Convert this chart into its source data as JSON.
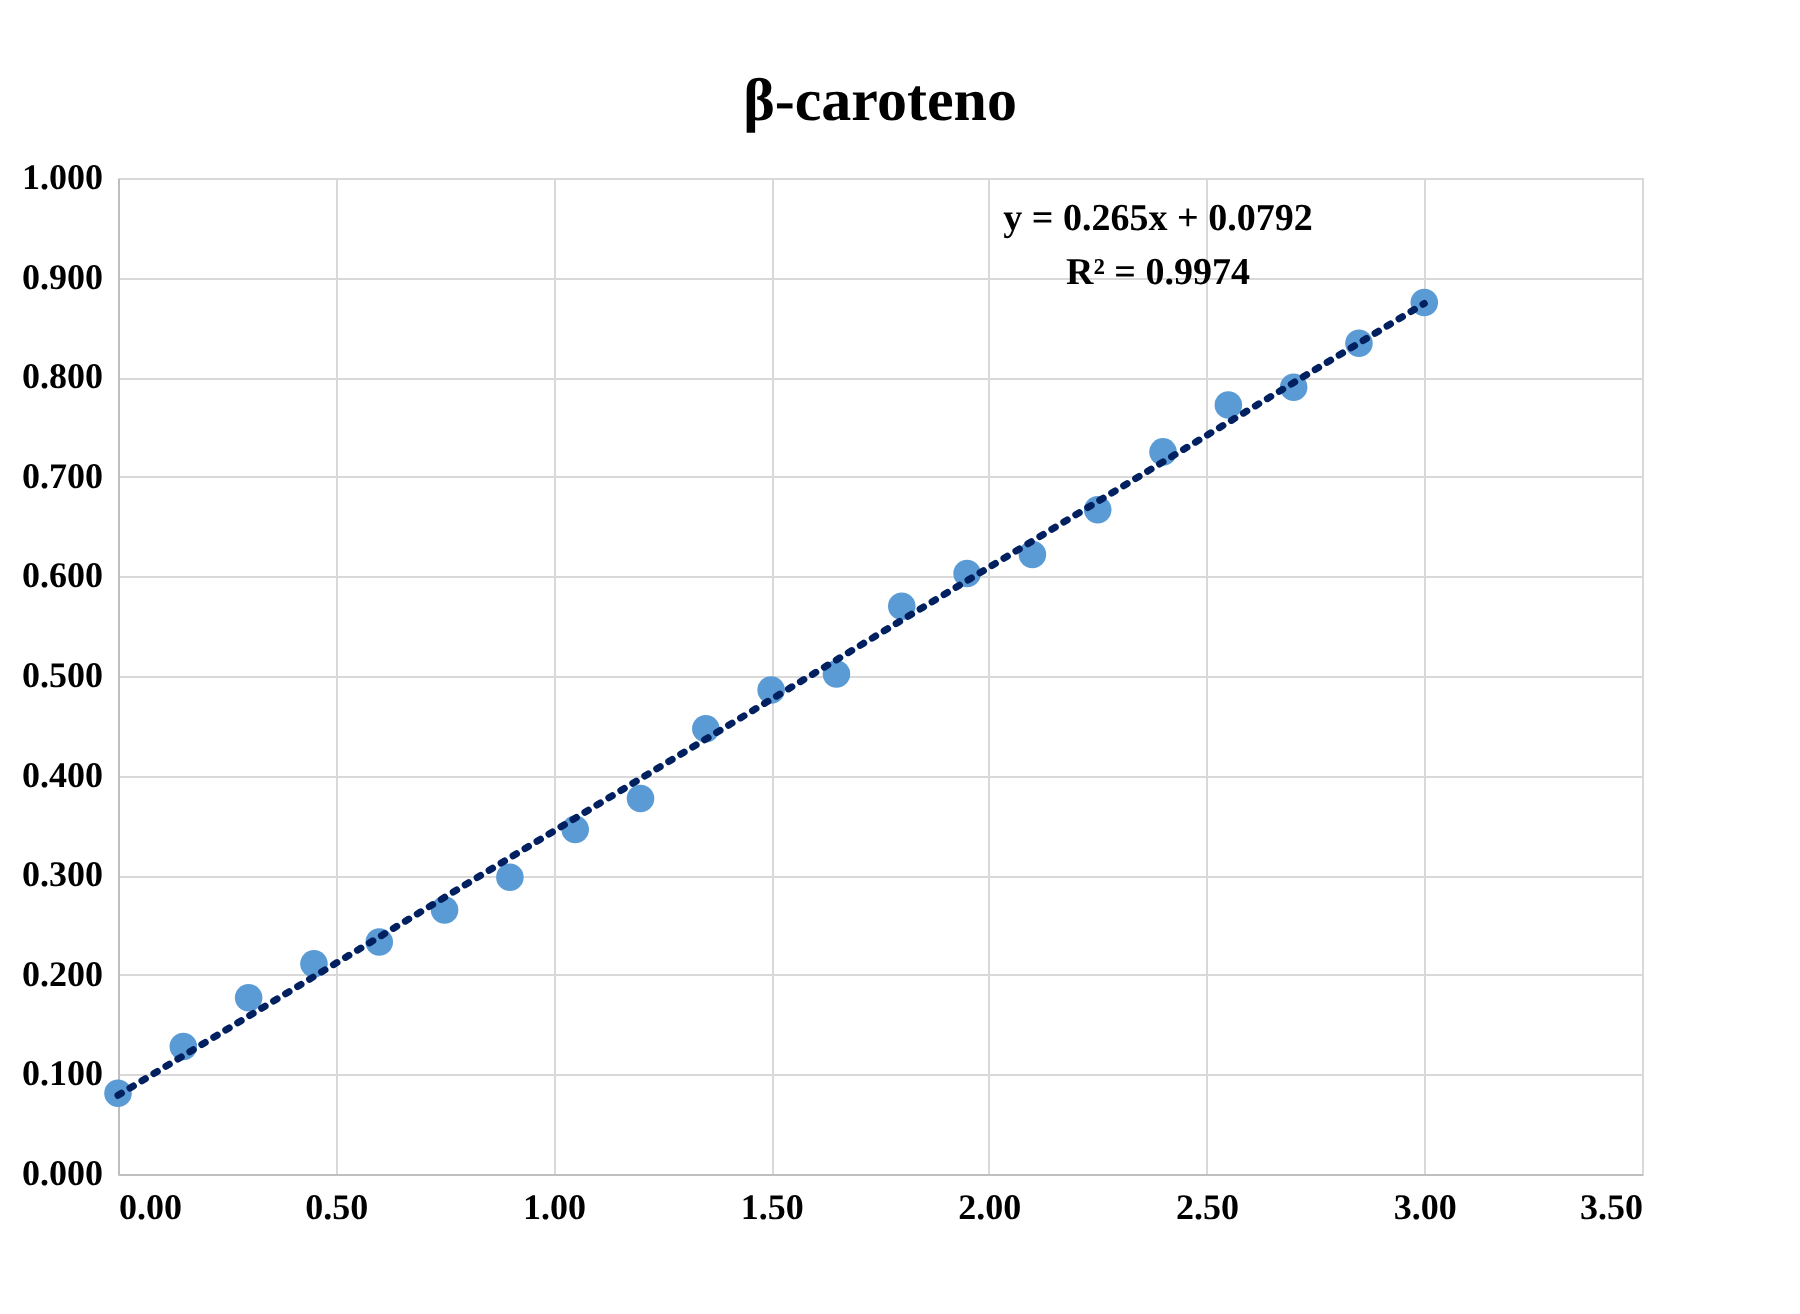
{
  "chart_data": {
    "type": "scatter",
    "title": "β-caroteno",
    "x": [
      0,
      0.15,
      0.3,
      0.45,
      0.6,
      0.75,
      0.9,
      1.05,
      1.2,
      1.35,
      1.5,
      1.65,
      1.8,
      1.95,
      2.1,
      2.25,
      2.4,
      2.55,
      2.7,
      2.85,
      3.0
    ],
    "series": [
      {
        "color": "#5b9bd5",
        "marker": "circle",
        "values": [
          0.081,
          0.128,
          0.177,
          0.211,
          0.233,
          0.265,
          0.298,
          0.346,
          0.377,
          0.447,
          0.486,
          0.502,
          0.57,
          0.603,
          0.622,
          0.667,
          0.725,
          0.772,
          0.79,
          0.834,
          0.875
        ]
      },
      {
        "type": "line",
        "color": "#002060",
        "line_style": "dotted",
        "x": [
          0,
          3.0
        ],
        "values": [
          0.079,
          0.874
        ]
      }
    ],
    "annotations": [
      "y = 0.265x + 0.0792",
      "R² = 0.9974"
    ],
    "xlim": [
      0,
      3.5
    ],
    "xticks": [
      {
        "value": 0,
        "label": "0.00"
      },
      {
        "value": 0.5,
        "label": "0.50"
      },
      {
        "value": 1,
        "label": "1.00"
      },
      {
        "value": 1.5,
        "label": "1.50"
      },
      {
        "value": 2,
        "label": "2.00"
      },
      {
        "value": 2.5,
        "label": "2.50"
      },
      {
        "value": 3,
        "label": "3.00"
      },
      {
        "value": 3.5,
        "label": "3.50"
      }
    ],
    "ylim": [
      0,
      1
    ],
    "yticks": [
      {
        "value": 0,
        "label": "0.000"
      },
      {
        "value": 0.1,
        "label": "0.100"
      },
      {
        "value": 0.2,
        "label": "0.200"
      },
      {
        "value": 0.3,
        "label": "0.300"
      },
      {
        "value": 0.4,
        "label": "0.400"
      },
      {
        "value": 0.5,
        "label": "0.500"
      },
      {
        "value": 0.6,
        "label": "0.600"
      },
      {
        "value": 0.7,
        "label": "0.700"
      },
      {
        "value": 0.8,
        "label": "0.800"
      },
      {
        "value": 0.9,
        "label": "0.900"
      },
      {
        "value": 1,
        "label": "1.000"
      }
    ],
    "grid": true
  }
}
